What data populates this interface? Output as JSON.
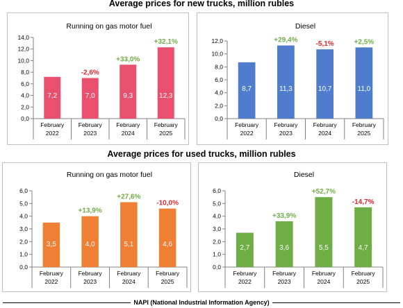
{
  "sections": {
    "new_title": "Average prices for new trucks, million rubles",
    "used_title": "Average prices for used trucks, million rubles"
  },
  "colors": {
    "gas_new": "#e8506e",
    "diesel_new": "#4f7ccc",
    "gas_used": "#ee7f33",
    "diesel_used": "#6fae45",
    "positive_change": "#6fae45",
    "negative_change": "#e3262b"
  },
  "source": "NAPI (National Industrial Information Agency)",
  "chart_data": [
    {
      "type": "bar",
      "title": "Running on gas motor fuel",
      "categories": [
        [
          "February",
          "2022"
        ],
        [
          "February",
          "2023"
        ],
        [
          "February",
          "2024"
        ],
        [
          "February",
          "2025"
        ]
      ],
      "values": [
        7.2,
        7.0,
        9.3,
        12.3
      ],
      "value_labels": [
        "7,2",
        "7,0",
        "9,3",
        "12,3"
      ],
      "changes": [
        "",
        "-2,6%",
        "+33,0%",
        "+32,1%"
      ],
      "ylim": [
        0,
        14
      ],
      "yticks": [
        "0,0",
        "2,0",
        "4,0",
        "6,0",
        "8,0",
        "10,0",
        "12,0",
        "14,0"
      ],
      "color": "#e8506e"
    },
    {
      "type": "bar",
      "title": "Diesel",
      "categories": [
        [
          "February",
          "2022"
        ],
        [
          "February",
          "2023"
        ],
        [
          "February",
          "2024"
        ],
        [
          "February",
          "2025"
        ]
      ],
      "values": [
        8.7,
        11.3,
        10.7,
        11.0
      ],
      "value_labels": [
        "8,7",
        "11,3",
        "10,7",
        "11,0"
      ],
      "changes": [
        "",
        "+29,4%",
        "-5,1%",
        "+2,5%"
      ],
      "ylim": [
        0,
        12
      ],
      "yticks": [
        "0,0",
        "2,0",
        "4,0",
        "6,0",
        "8,0",
        "10,0",
        "12,0"
      ],
      "color": "#4f7ccc"
    },
    {
      "type": "bar",
      "title": "Running on gas motor fuel",
      "categories": [
        [
          "February",
          "2022"
        ],
        [
          "February",
          "2023"
        ],
        [
          "February",
          "2024"
        ],
        [
          "February",
          "2025"
        ]
      ],
      "values": [
        3.5,
        4.0,
        5.1,
        4.6
      ],
      "value_labels": [
        "3,5",
        "4,0",
        "5,1",
        "4,6"
      ],
      "changes": [
        "",
        "+13,9%",
        "+27,6%",
        "-10,0%"
      ],
      "ylim": [
        0,
        6
      ],
      "yticks": [
        "0,0",
        "1,0",
        "2,0",
        "3,0",
        "4,0",
        "5,0",
        "6,0"
      ],
      "color": "#ee7f33"
    },
    {
      "type": "bar",
      "title": "Diesel",
      "categories": [
        [
          "February",
          "2022"
        ],
        [
          "February",
          "2023"
        ],
        [
          "February",
          "2024"
        ],
        [
          "February",
          "2025"
        ]
      ],
      "values": [
        2.7,
        3.6,
        5.5,
        4.7
      ],
      "value_labels": [
        "2,7",
        "3,6",
        "5,5",
        "4,7"
      ],
      "changes": [
        "",
        "+33,9%",
        "+52,7%",
        "-14,7%"
      ],
      "ylim": [
        0,
        6
      ],
      "yticks": [
        "0,0",
        "1,0",
        "2,0",
        "3,0",
        "4,0",
        "5,0",
        "6,0"
      ],
      "color": "#6fae45"
    }
  ]
}
